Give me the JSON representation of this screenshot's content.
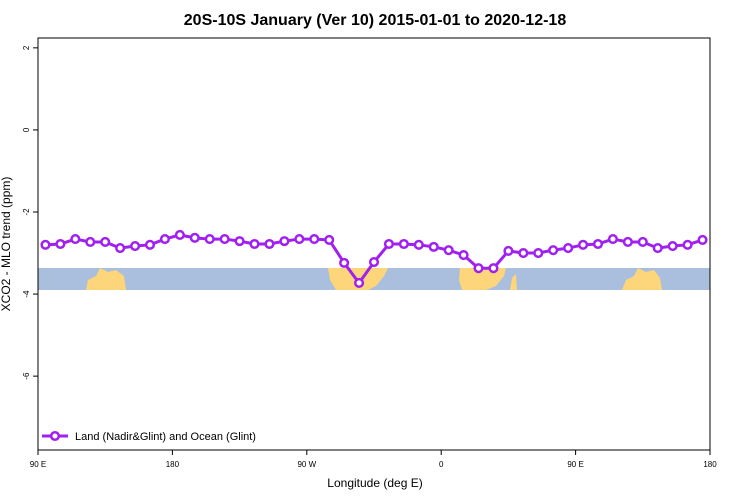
{
  "chart_data": {
    "type": "line",
    "title": "20S-10S January (Ver 10)   2015-01-01 to 2020-12-18",
    "x_label": "Longitude (deg E)",
    "y_label": "XCO2 - MLO trend (ppm)",
    "x": [
      95,
      105,
      115,
      125,
      135,
      145,
      155,
      165,
      175,
      185,
      195,
      205,
      215,
      225,
      235,
      245,
      255,
      265,
      275,
      285,
      295,
      305,
      315,
      325,
      335,
      345,
      355,
      365,
      375,
      385,
      395,
      405,
      415,
      425,
      435,
      445,
      455,
      465,
      475,
      485,
      495,
      505,
      515,
      525,
      535
    ],
    "series": [
      {
        "name": "Land (Nadir&Glint) and Ocean (Glint)",
        "color": "#a020f0",
        "values": [
          -2.8,
          -2.78,
          -2.66,
          -2.73,
          -2.73,
          -2.88,
          -2.83,
          -2.8,
          -2.66,
          -2.56,
          -2.63,
          -2.66,
          -2.66,
          -2.71,
          -2.78,
          -2.78,
          -2.71,
          -2.66,
          -2.66,
          -2.68,
          -3.24,
          -3.73,
          -3.22,
          -2.78,
          -2.78,
          -2.8,
          -2.85,
          -2.93,
          -3.05,
          -3.37,
          -3.37,
          -2.95,
          -3.0,
          -3.0,
          -2.93,
          -2.88,
          -2.8,
          -2.78,
          -2.66,
          -2.73,
          -2.73,
          -2.88,
          -2.83,
          -2.8,
          -2.68
        ]
      }
    ],
    "xlim": [
      90,
      540
    ],
    "xticks": [
      {
        "value": 90,
        "label": "90 E"
      },
      180,
      {
        "value": 270,
        "label": "90 W"
      },
      {
        "value": 360,
        "label": "0"
      },
      {
        "value": 450,
        "label": "90 E"
      },
      {
        "value": 540,
        "label": "180"
      }
    ],
    "ylim": [
      -7.8,
      2.24
    ],
    "yticks": [
      2,
      0,
      -2,
      -4,
      -6
    ],
    "legend": "bottom-left"
  }
}
